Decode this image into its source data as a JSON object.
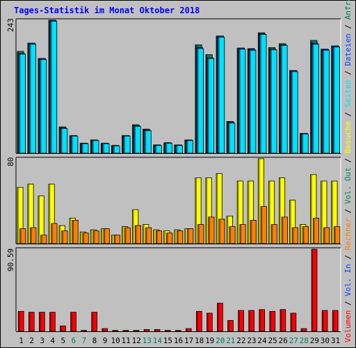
{
  "chart_data": [
    {
      "type": "bar",
      "title": "Tages-Statistik im Monat Oktober 2018",
      "panel": "top",
      "y_axis_label": "243",
      "right_labels": [
        {
          "text": "Anfragen",
          "color": "#00805c"
        },
        {
          "text": "Dateien",
          "color": "#0040ff"
        },
        {
          "text": "Seiten",
          "color": "#00e0ff"
        },
        {
          "text": "Besuche",
          "color": "#ffff00"
        }
      ],
      "ylim": [
        0,
        243
      ],
      "categories": [
        "1",
        "2",
        "3",
        "4",
        "5",
        "6",
        "7",
        "8",
        "9",
        "10",
        "11",
        "12",
        "13",
        "14",
        "15",
        "16",
        "17",
        "18",
        "19",
        "20",
        "21",
        "22",
        "23",
        "24",
        "25",
        "26",
        "27",
        "28",
        "29",
        "30",
        "31"
      ],
      "series": [
        {
          "name": "Anfragen",
          "color": "#00805c",
          "values": [
            186,
            201,
            173,
            243,
            48,
            32,
            18,
            24,
            18,
            14,
            32,
            52,
            44,
            15,
            19,
            15,
            24,
            198,
            180,
            214,
            58,
            192,
            191,
            220,
            193,
            200,
            151,
            36,
            206,
            190,
            196
          ]
        },
        {
          "name": "Dateien",
          "color": "#0040ff",
          "values": [
            182,
            201,
            173,
            243,
            46,
            32,
            18,
            24,
            18,
            14,
            32,
            50,
            42,
            15,
            19,
            15,
            24,
            193,
            174,
            214,
            56,
            192,
            190,
            218,
            190,
            198,
            151,
            36,
            201,
            190,
            196
          ]
        },
        {
          "name": "Seiten",
          "color": "#00e0ff",
          "values": [
            181,
            199,
            171,
            241,
            45,
            31,
            17,
            23,
            17,
            13,
            31,
            49,
            41,
            14,
            18,
            14,
            23,
            191,
            173,
            212,
            55,
            190,
            188,
            217,
            189,
            197,
            149,
            35,
            199,
            188,
            194
          ]
        }
      ]
    },
    {
      "type": "bar",
      "panel": "middle",
      "y_axis_label": "80",
      "right_labels": [
        {
          "text": "Rechner",
          "color": "#ff8000"
        },
        {
          "text": "Vol. Out",
          "color": "#00805c"
        }
      ],
      "ylim": [
        0,
        80
      ],
      "categories": [
        "1",
        "2",
        "3",
        "4",
        "5",
        "6",
        "7",
        "8",
        "9",
        "10",
        "11",
        "12",
        "13",
        "14",
        "15",
        "16",
        "17",
        "18",
        "19",
        "20",
        "21",
        "22",
        "23",
        "24",
        "25",
        "26",
        "27",
        "28",
        "29",
        "30",
        "31"
      ],
      "series": [
        {
          "name": "Besuche",
          "color": "#ffff00",
          "values": [
            53,
            56,
            45,
            56,
            17,
            24,
            11,
            13,
            14,
            8,
            16,
            32,
            18,
            13,
            12,
            13,
            14,
            62,
            62,
            66,
            26,
            59,
            59,
            80,
            59,
            62,
            41,
            18,
            65,
            59,
            59
          ]
        },
        {
          "name": "Rechner",
          "color": "#ff8000",
          "values": [
            14,
            15,
            8,
            19,
            12,
            22,
            10,
            12,
            14,
            8,
            15,
            17,
            15,
            12,
            10,
            12,
            14,
            18,
            25,
            23,
            16,
            18,
            22,
            35,
            18,
            25,
            15,
            16,
            24,
            15,
            16
          ]
        }
      ]
    },
    {
      "type": "bar",
      "panel": "bottom",
      "y_axis_label": "90.59",
      "right_labels": [
        {
          "text": "Volumen",
          "color": "#ff0000"
        },
        {
          "text": "Vol. In",
          "color": "#0040ff"
        }
      ],
      "ylim": [
        0,
        90.59
      ],
      "categories": [
        "1",
        "2",
        "3",
        "4",
        "5",
        "6",
        "7",
        "8",
        "9",
        "10",
        "11",
        "12",
        "13",
        "14",
        "15",
        "16",
        "17",
        "18",
        "19",
        "20",
        "21",
        "22",
        "23",
        "24",
        "25",
        "26",
        "27",
        "28",
        "29",
        "30",
        "31"
      ],
      "series": [
        {
          "name": "Volumen",
          "color": "#ff0000",
          "values": [
            22,
            21,
            21,
            21,
            6,
            21,
            1,
            21,
            3,
            1,
            1,
            1,
            2,
            2,
            1,
            1,
            3,
            22,
            20,
            31,
            12,
            23,
            23,
            24,
            22,
            24,
            20,
            3,
            90.59,
            23,
            23
          ]
        }
      ]
    }
  ],
  "x_axis": {
    "labels": [
      "1",
      "2",
      "3",
      "4",
      "5",
      "6",
      "7",
      "8",
      "9",
      "10",
      "11",
      "12",
      "13",
      "14",
      "15",
      "16",
      "17",
      "18",
      "19",
      "20",
      "21",
      "22",
      "23",
      "24",
      "25",
      "26",
      "27",
      "28",
      "29",
      "30",
      "31"
    ],
    "label_colors": [
      "#000000",
      "#000000",
      "#000000",
      "#000000",
      "#000000",
      "#00805c",
      "#00805c",
      "#000000",
      "#000000",
      "#000000",
      "#000000",
      "#000000",
      "#00805c",
      "#00805c",
      "#000000",
      "#000000",
      "#000000",
      "#000000",
      "#000000",
      "#00805c",
      "#00805c",
      "#000000",
      "#000000",
      "#000000",
      "#000000",
      "#000000",
      "#00805c",
      "#00805c",
      "#000000",
      "#000000",
      "#000000"
    ]
  },
  "colors": {
    "background": "#c0c0c0",
    "title": "#0000ff",
    "separator": "#000000"
  }
}
